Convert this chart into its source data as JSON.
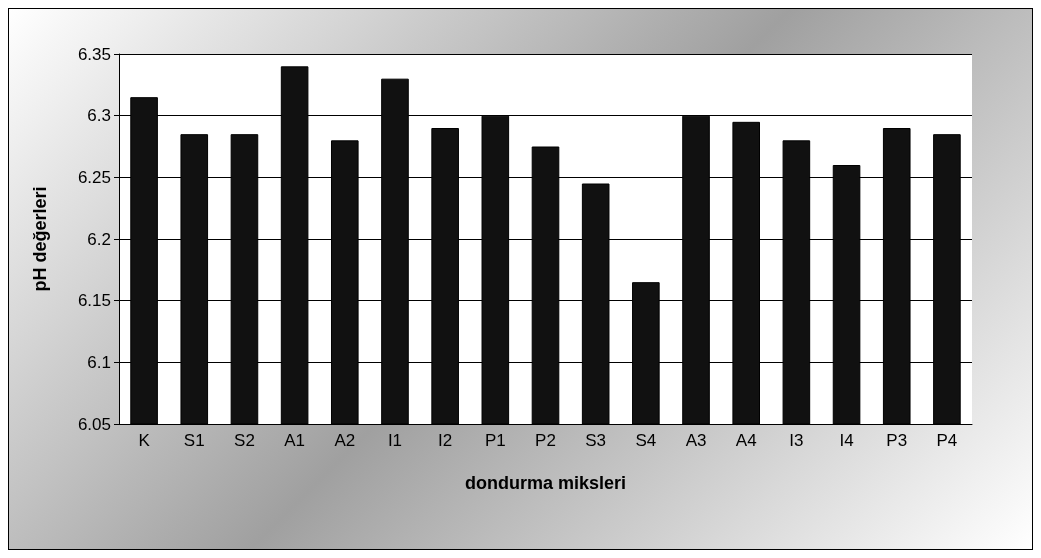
{
  "chart_data": {
    "type": "bar",
    "xlabel": "dondurma miksleri",
    "ylabel": "pH değerleri",
    "categories": [
      "K",
      "S1",
      "S2",
      "A1",
      "A2",
      "I1",
      "I2",
      "P1",
      "P2",
      "S3",
      "S4",
      "A3",
      "A4",
      "I3",
      "I4",
      "P3",
      "P4"
    ],
    "values": [
      6.315,
      6.285,
      6.285,
      6.34,
      6.28,
      6.33,
      6.29,
      6.3,
      6.275,
      6.245,
      6.165,
      6.3,
      6.295,
      6.28,
      6.26,
      6.29,
      6.285
    ],
    "color": "#111111",
    "ylim": [
      6.05,
      6.35
    ],
    "yticks": [
      6.05,
      6.1,
      6.15,
      6.2,
      6.25,
      6.3,
      6.35
    ],
    "grid": "y"
  }
}
